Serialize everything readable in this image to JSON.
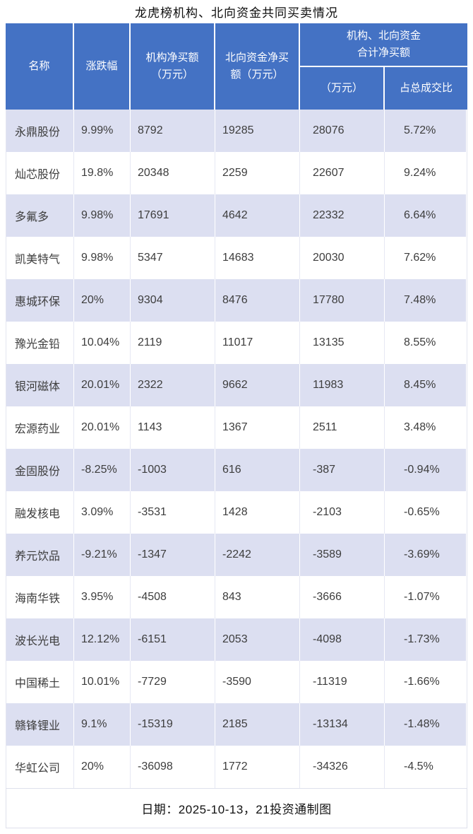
{
  "title": "龙虎榜机构、北向资金共同买卖情况",
  "colors": {
    "header_bg": "#4472C4",
    "header_text": "#FFFFFF",
    "row_alt_bg": "#DCDFF1",
    "row_bg": "#FFFFFF",
    "data_text": "#3D3D3D"
  },
  "table": {
    "headers": {
      "name": "名称",
      "change": "涨跌幅",
      "inst_net_buy": "机构净买额\n（万元）",
      "north_net_buy": "北向资金净买\n额（万元）",
      "combined_group": "机构、北向资金\n合计净买额",
      "combined_amount": "（万元）",
      "combined_pct": "占总成交比"
    },
    "rows": [
      {
        "name": "永鼎股份",
        "change": "9.99%",
        "inst": "8792",
        "north": "19285",
        "total": "28076",
        "pct": "5.72%"
      },
      {
        "name": "灿芯股份",
        "change": "19.8%",
        "inst": "20348",
        "north": "2259",
        "total": "22607",
        "pct": "9.24%"
      },
      {
        "name": "多氟多",
        "change": "9.98%",
        "inst": "17691",
        "north": "4642",
        "total": "22332",
        "pct": "6.64%"
      },
      {
        "name": "凯美特气",
        "change": "9.98%",
        "inst": "5347",
        "north": "14683",
        "total": "20030",
        "pct": "7.62%"
      },
      {
        "name": "惠城环保",
        "change": "20%",
        "inst": "9304",
        "north": "8476",
        "total": "17780",
        "pct": "7.48%"
      },
      {
        "name": "豫光金铅",
        "change": "10.04%",
        "inst": "2119",
        "north": "11017",
        "total": "13135",
        "pct": "8.55%"
      },
      {
        "name": "银河磁体",
        "change": "20.01%",
        "inst": "2322",
        "north": "9662",
        "total": "11983",
        "pct": "8.45%"
      },
      {
        "name": "宏源药业",
        "change": "20.01%",
        "inst": "1143",
        "north": "1367",
        "total": "2511",
        "pct": "3.48%"
      },
      {
        "name": "金固股份",
        "change": "-8.25%",
        "inst": "-1003",
        "north": "616",
        "total": "-387",
        "pct": "-0.94%"
      },
      {
        "name": "融发核电",
        "change": "3.09%",
        "inst": "-3531",
        "north": "1428",
        "total": "-2103",
        "pct": "-0.65%"
      },
      {
        "name": "养元饮品",
        "change": "-9.21%",
        "inst": "-1347",
        "north": "-2242",
        "total": "-3589",
        "pct": "-3.69%"
      },
      {
        "name": "海南华铁",
        "change": "3.95%",
        "inst": "-4508",
        "north": "843",
        "total": "-3666",
        "pct": "-1.07%"
      },
      {
        "name": "波长光电",
        "change": "12.12%",
        "inst": "-6151",
        "north": "2053",
        "total": "-4098",
        "pct": "-1.73%"
      },
      {
        "name": "中国稀土",
        "change": "10.01%",
        "inst": "-7729",
        "north": "-3590",
        "total": "-11319",
        "pct": "-1.66%"
      },
      {
        "name": "赣锋锂业",
        "change": "9.1%",
        "inst": "-15319",
        "north": "2185",
        "total": "-13134",
        "pct": "-1.48%"
      },
      {
        "name": "华虹公司",
        "change": "20%",
        "inst": "-36098",
        "north": "1772",
        "total": "-34326",
        "pct": "-4.5%"
      }
    ]
  },
  "footer": {
    "text": "日期：2025-10-13，21投资通制图"
  },
  "chart_data": {
    "type": "table",
    "title": "龙虎榜机构、北向资金共同买卖情况",
    "columns": [
      "名称",
      "涨跌幅",
      "机构净买额（万元）",
      "北向资金净买额（万元）",
      "机构、北向资金合计净买额（万元）",
      "机构、北向资金合计净买额占总成交比"
    ],
    "rows": [
      [
        "永鼎股份",
        9.99,
        8792,
        19285,
        28076,
        5.72
      ],
      [
        "灿芯股份",
        19.8,
        20348,
        2259,
        22607,
        9.24
      ],
      [
        "多氟多",
        9.98,
        17691,
        4642,
        22332,
        6.64
      ],
      [
        "凯美特气",
        9.98,
        5347,
        14683,
        20030,
        7.62
      ],
      [
        "惠城环保",
        20,
        9304,
        8476,
        17780,
        7.48
      ],
      [
        "豫光金铅",
        10.04,
        2119,
        11017,
        13135,
        8.55
      ],
      [
        "银河磁体",
        20.01,
        2322,
        9662,
        11983,
        8.45
      ],
      [
        "宏源药业",
        20.01,
        1143,
        1367,
        2511,
        3.48
      ],
      [
        "金固股份",
        -8.25,
        -1003,
        616,
        -387,
        -0.94
      ],
      [
        "融发核电",
        3.09,
        -3531,
        1428,
        -2103,
        -0.65
      ],
      [
        "养元饮品",
        -9.21,
        -1347,
        -2242,
        -3589,
        -3.69
      ],
      [
        "海南华铁",
        3.95,
        -4508,
        843,
        -3666,
        -1.07
      ],
      [
        "波长光电",
        12.12,
        -6151,
        2053,
        -4098,
        -1.73
      ],
      [
        "中国稀土",
        10.01,
        -7729,
        -3590,
        -11319,
        -1.66
      ],
      [
        "赣锋锂业",
        9.1,
        -15319,
        2185,
        -13134,
        -1.48
      ],
      [
        "华虹公司",
        20,
        -36098,
        1772,
        -34326,
        -4.5
      ]
    ],
    "units": "万元 (percent columns in %)",
    "footer": "日期：2025-10-13，21投资通制图"
  }
}
